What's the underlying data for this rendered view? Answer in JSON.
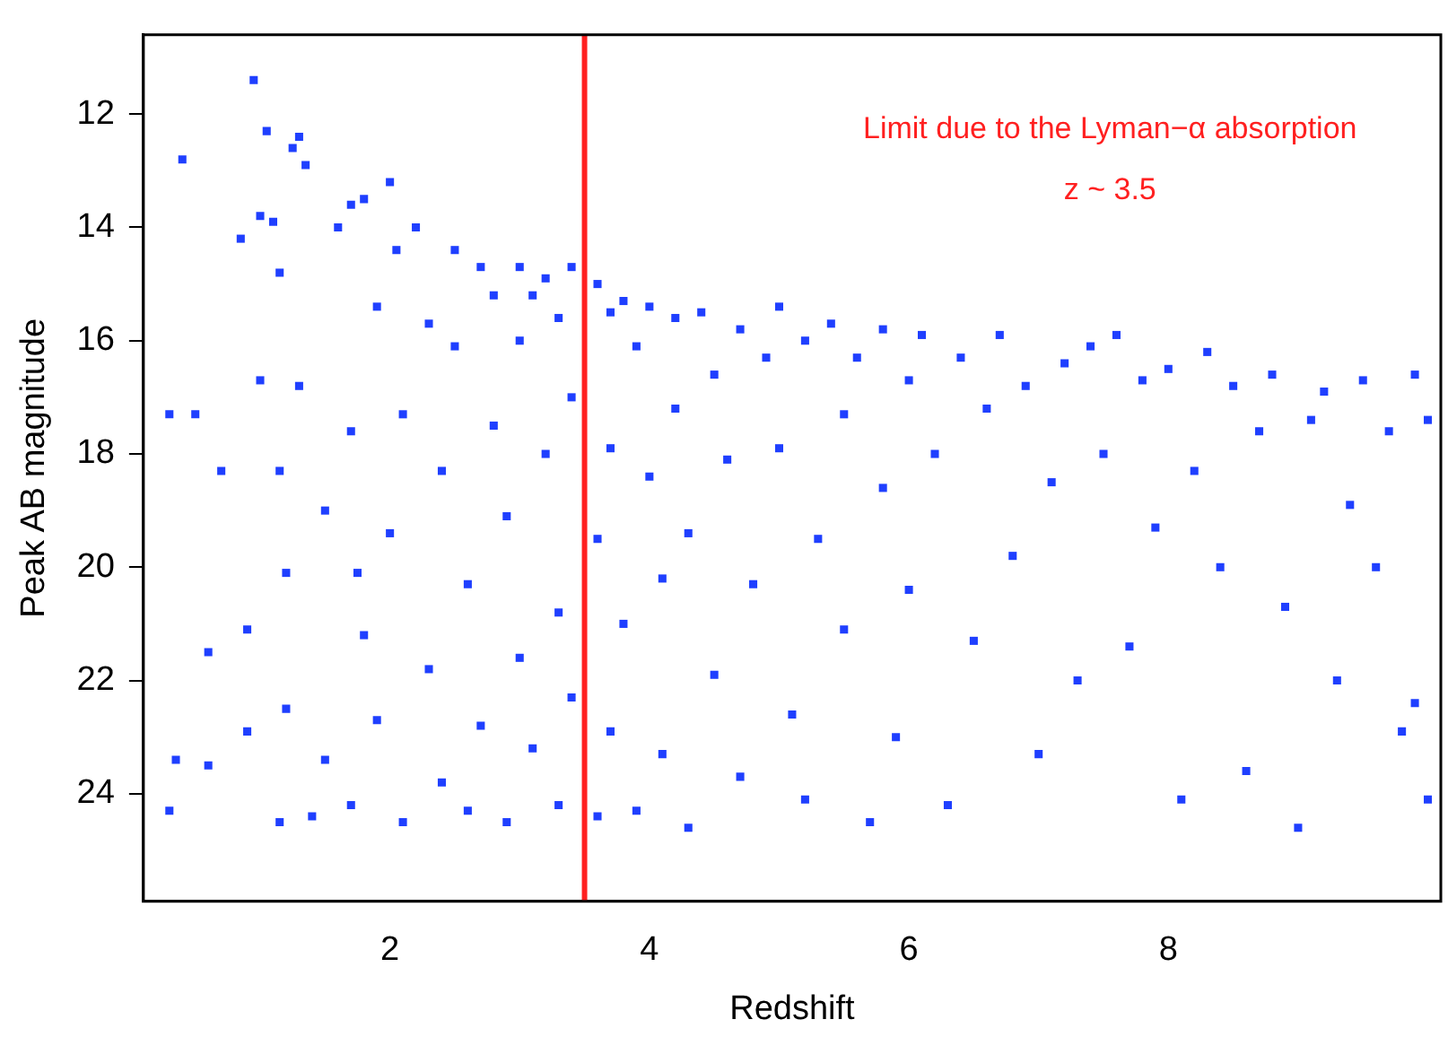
{
  "chart_data": {
    "type": "scatter",
    "xlabel": "Redshift",
    "ylabel": "Peak AB magnitude",
    "annotations": [
      "Limit due to the Lyman−α absorption",
      "z ~ 3.5"
    ],
    "xlim": [
      0.1,
      10.1
    ],
    "xticks": [
      2,
      4,
      6,
      8
    ],
    "ylim": [
      25.9,
      10.6
    ],
    "yticks": [
      12,
      14,
      16,
      18,
      20,
      22,
      24
    ],
    "grid": false,
    "legend": false,
    "marker": "square",
    "ref_lines": [
      {
        "axis": "x",
        "value": 3.5,
        "color": "#ff2020"
      }
    ],
    "series": [
      {
        "color": "#1f3fff",
        "x": [
          0.4,
          0.3,
          0.5,
          0.35,
          0.6,
          0.3,
          0.6,
          0.7,
          0.85,
          0.95,
          1.0,
          0.9,
          0.9,
          1.0,
          1.05,
          1.1,
          1.15,
          1.15,
          1.2,
          1.15,
          1.2,
          1.25,
          1.3,
          1.35,
          1.3,
          1.4,
          1.5,
          1.5,
          1.6,
          1.7,
          1.8,
          1.7,
          1.75,
          1.8,
          1.7,
          1.9,
          1.9,
          2.0,
          2.05,
          2.1,
          2.0,
          2.1,
          2.2,
          2.3,
          2.3,
          2.4,
          2.4,
          2.5,
          2.5,
          2.6,
          2.6,
          2.7,
          2.7,
          2.8,
          2.8,
          2.9,
          2.9,
          3.0,
          3.0,
          3.0,
          3.1,
          3.1,
          3.2,
          3.2,
          3.3,
          3.3,
          3.3,
          3.4,
          3.4,
          3.4,
          3.6,
          3.6,
          3.6,
          3.7,
          3.7,
          3.7,
          3.8,
          3.8,
          3.9,
          3.9,
          4.0,
          4.0,
          4.1,
          4.1,
          4.2,
          4.2,
          4.3,
          4.3,
          4.4,
          4.5,
          4.5,
          4.6,
          4.7,
          4.7,
          4.8,
          4.9,
          5.0,
          5.0,
          5.1,
          5.2,
          5.2,
          5.3,
          5.4,
          5.5,
          5.5,
          5.6,
          5.7,
          5.8,
          5.8,
          5.9,
          6.0,
          6.0,
          6.1,
          6.2,
          6.3,
          6.4,
          6.5,
          6.6,
          6.7,
          6.8,
          6.9,
          7.0,
          7.1,
          7.2,
          7.3,
          7.4,
          7.5,
          7.6,
          7.7,
          7.8,
          7.9,
          8.0,
          8.1,
          8.2,
          8.3,
          8.4,
          8.5,
          8.6,
          8.7,
          8.8,
          8.9,
          9.0,
          9.1,
          9.2,
          9.3,
          9.4,
          9.5,
          9.6,
          9.7,
          9.8,
          9.9,
          10.0,
          10.0,
          9.9
        ],
        "values": [
          12.8,
          17.3,
          17.3,
          23.4,
          23.5,
          24.3,
          21.5,
          18.3,
          14.2,
          11.4,
          13.8,
          22.9,
          21.1,
          16.7,
          12.3,
          13.9,
          14.8,
          18.3,
          20.1,
          24.5,
          22.5,
          12.6,
          12.4,
          12.9,
          16.8,
          24.4,
          23.4,
          19.0,
          14.0,
          13.6,
          13.5,
          17.6,
          20.1,
          21.2,
          24.2,
          15.4,
          22.7,
          13.2,
          14.4,
          17.3,
          19.4,
          24.5,
          14.0,
          15.7,
          21.8,
          18.3,
          23.8,
          14.4,
          16.1,
          20.3,
          24.3,
          14.7,
          22.8,
          15.2,
          17.5,
          19.1,
          24.5,
          14.7,
          16.0,
          21.6,
          15.2,
          23.2,
          14.9,
          18.0,
          15.6,
          20.8,
          24.2,
          14.7,
          17.0,
          22.3,
          15.0,
          19.5,
          24.4,
          15.5,
          17.9,
          22.9,
          15.3,
          21.0,
          16.1,
          24.3,
          15.4,
          18.4,
          20.2,
          23.3,
          15.6,
          17.2,
          19.4,
          24.6,
          15.5,
          16.6,
          21.9,
          18.1,
          15.8,
          23.7,
          20.3,
          16.3,
          15.4,
          17.9,
          22.6,
          16.0,
          24.1,
          19.5,
          15.7,
          17.3,
          21.1,
          16.3,
          24.5,
          15.8,
          18.6,
          23.0,
          16.7,
          20.4,
          15.9,
          18.0,
          24.2,
          16.3,
          21.3,
          17.2,
          15.9,
          19.8,
          16.8,
          23.3,
          18.5,
          16.4,
          22.0,
          16.1,
          18.0,
          15.9,
          21.4,
          16.7,
          19.3,
          16.5,
          24.1,
          18.3,
          16.2,
          20.0,
          16.8,
          23.6,
          17.6,
          16.6,
          20.7,
          24.6,
          17.4,
          16.9,
          22.0,
          18.9,
          16.7,
          20.0,
          17.6,
          22.9,
          16.6,
          17.4,
          24.1,
          22.4
        ]
      }
    ]
  }
}
